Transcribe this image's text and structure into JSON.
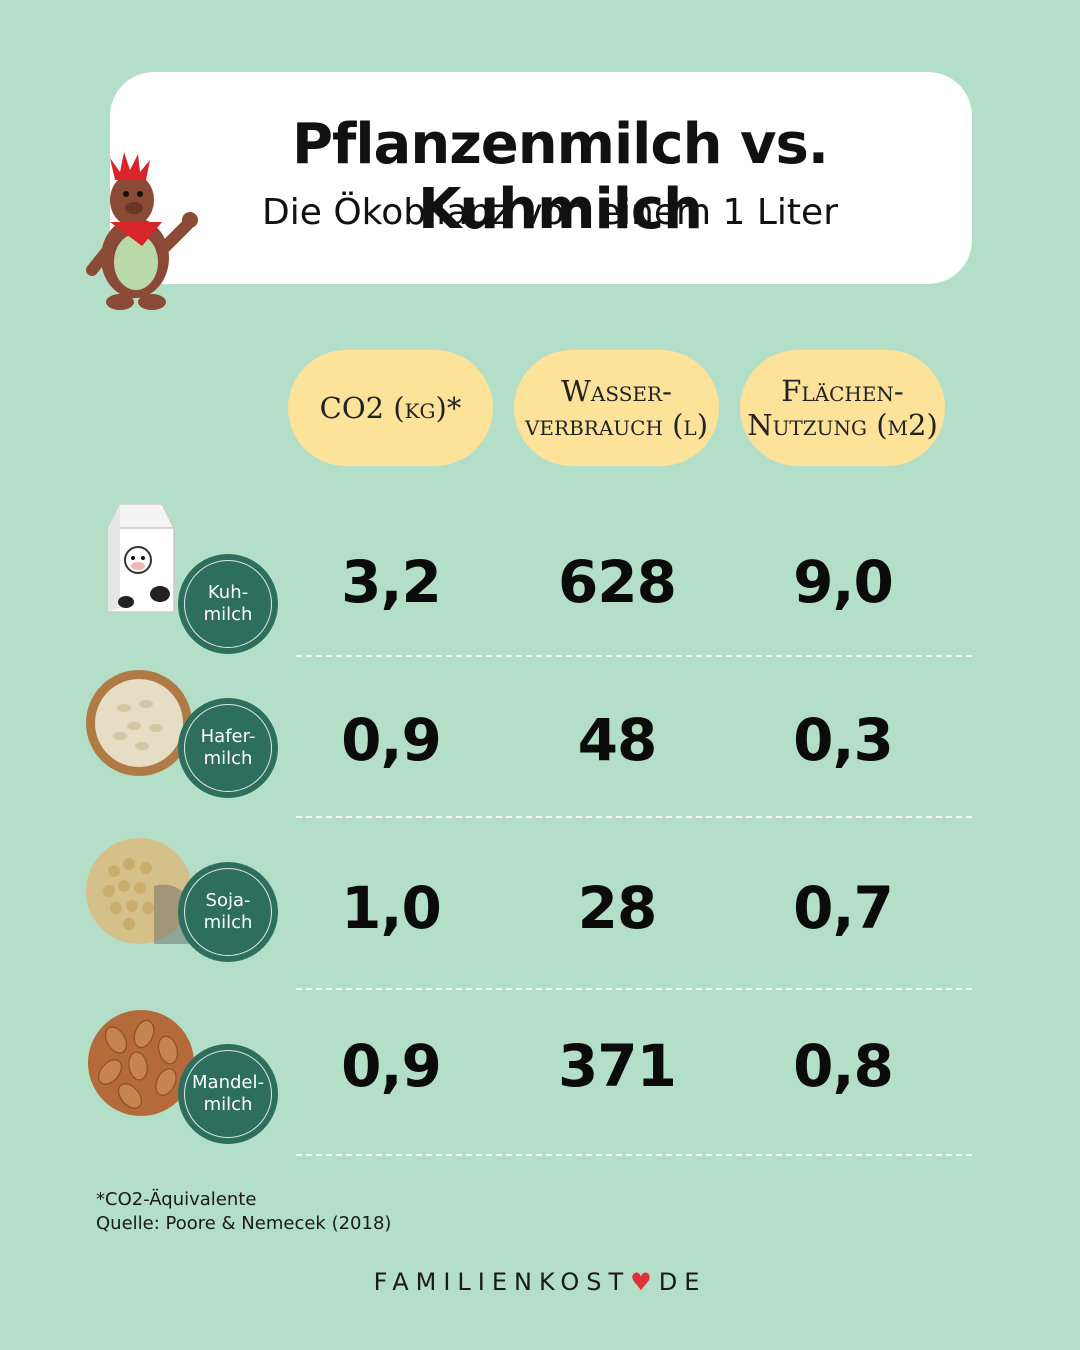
{
  "title": "Pflanzenmilch vs. Kuhmilch",
  "subtitle": "Die Ökobilanz von einem 1 Liter",
  "chart_data": {
    "type": "table",
    "columns": [
      "CO2 (kg)*",
      "Wasser-\nverbrauch (l)",
      "Flächen-\nNutzung (m2)"
    ],
    "rows": [
      {
        "label": "Kuh-\nmilch",
        "values": [
          "3,2",
          "628",
          "9,0"
        ]
      },
      {
        "label": "Hafer-\nmilch",
        "values": [
          "0,9",
          "48",
          "0,3"
        ]
      },
      {
        "label": "Soja-\nmilch",
        "values": [
          "1,0",
          "28",
          "0,7"
        ]
      },
      {
        "label": "Mandel-\nmilch",
        "values": [
          "0,9",
          "371",
          "0,8"
        ]
      }
    ]
  },
  "footnote": {
    "line1": "*CO2-Äquivalente",
    "line2": "Quelle:  Poore & Nemecek (2018)"
  },
  "brand": {
    "left": "FAMILIENKOST",
    "heart": "♥",
    "right": "DE"
  },
  "colors": {
    "background": "#b3dec7",
    "header_pill": "#fde29a",
    "badge": "#2d6e5d",
    "card": "#ffffff",
    "heart": "#e0313a"
  },
  "icons": [
    "mascot-icon",
    "milk-carton-icon",
    "oats-bowl-icon",
    "soybeans-icon",
    "almonds-icon"
  ]
}
